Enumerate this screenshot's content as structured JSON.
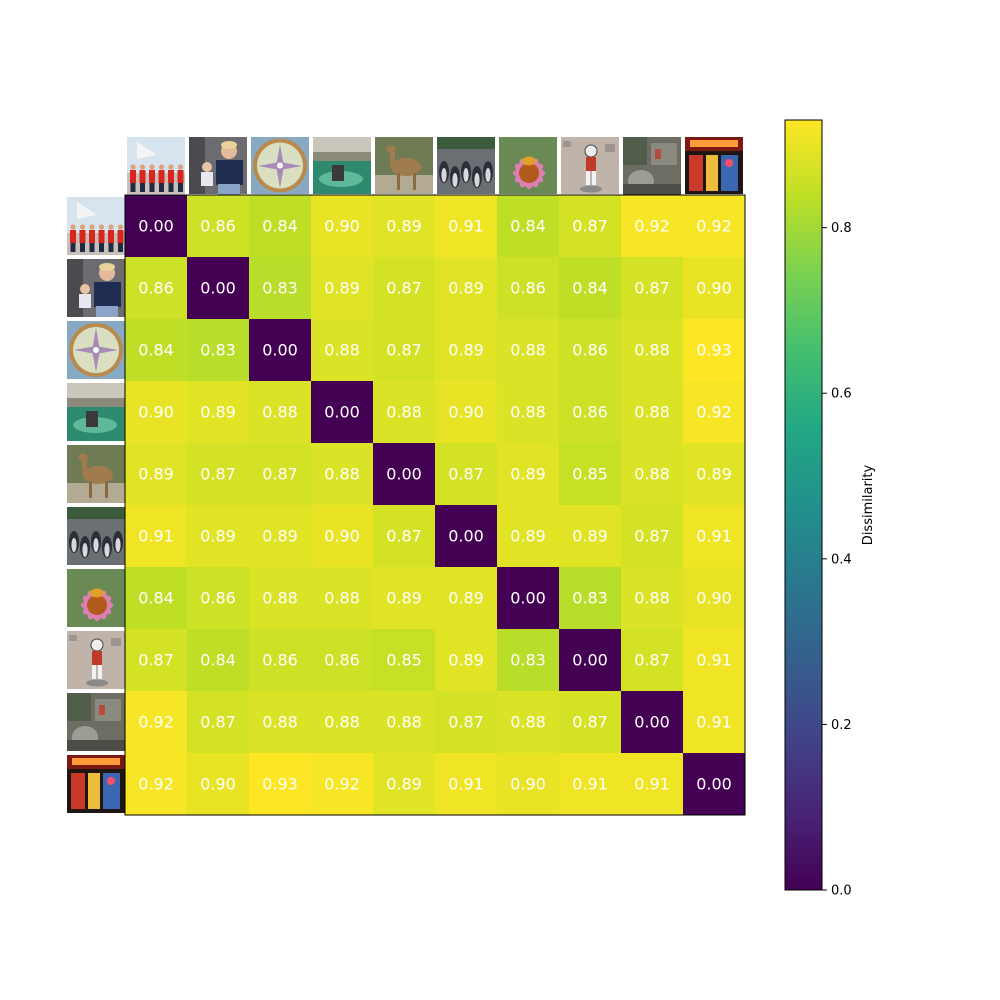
{
  "chart_data": {
    "type": "heatmap",
    "title": "",
    "xlabel": "",
    "ylabel": "",
    "colormap": "viridis",
    "color_range": [
      0.0,
      0.93
    ],
    "colorbar": {
      "label": "Dissimilarity",
      "ticks": [
        0.0,
        0.2,
        0.4,
        0.6,
        0.8
      ],
      "tick_labels": [
        "0.0",
        "0.2",
        "0.4",
        "0.6",
        "0.8"
      ]
    },
    "value_format": "2 decimals",
    "row_images": [
      "team-on-boat-image",
      "man-with-child-image",
      "compass-image",
      "fountain-image",
      "camel-image",
      "penguins-image",
      "coneflower-bee-image",
      "cartoon-figure-image",
      "street-scene-image",
      "neon-storefront-image"
    ],
    "column_images": [
      "team-on-boat-image",
      "man-with-child-image",
      "compass-image",
      "fountain-image",
      "camel-image",
      "penguins-image",
      "coneflower-bee-image",
      "cartoon-figure-image",
      "street-scene-image",
      "neon-storefront-image"
    ],
    "matrix": [
      [
        0.0,
        0.86,
        0.84,
        0.9,
        0.89,
        0.91,
        0.84,
        0.87,
        0.92,
        0.92
      ],
      [
        0.86,
        0.0,
        0.83,
        0.89,
        0.87,
        0.89,
        0.86,
        0.84,
        0.87,
        0.9
      ],
      [
        0.84,
        0.83,
        0.0,
        0.88,
        0.87,
        0.89,
        0.88,
        0.86,
        0.88,
        0.93
      ],
      [
        0.9,
        0.89,
        0.88,
        0.0,
        0.88,
        0.9,
        0.88,
        0.86,
        0.88,
        0.92
      ],
      [
        0.89,
        0.87,
        0.87,
        0.88,
        0.0,
        0.87,
        0.89,
        0.85,
        0.88,
        0.89
      ],
      [
        0.91,
        0.89,
        0.89,
        0.9,
        0.87,
        0.0,
        0.89,
        0.89,
        0.87,
        0.91
      ],
      [
        0.84,
        0.86,
        0.88,
        0.88,
        0.89,
        0.89,
        0.0,
        0.83,
        0.88,
        0.9
      ],
      [
        0.87,
        0.84,
        0.86,
        0.86,
        0.85,
        0.89,
        0.83,
        0.0,
        0.87,
        0.91
      ],
      [
        0.92,
        0.87,
        0.88,
        0.88,
        0.88,
        0.87,
        0.88,
        0.87,
        0.0,
        0.91
      ],
      [
        0.92,
        0.9,
        0.93,
        0.92,
        0.89,
        0.91,
        0.9,
        0.91,
        0.91,
        0.0
      ]
    ]
  }
}
